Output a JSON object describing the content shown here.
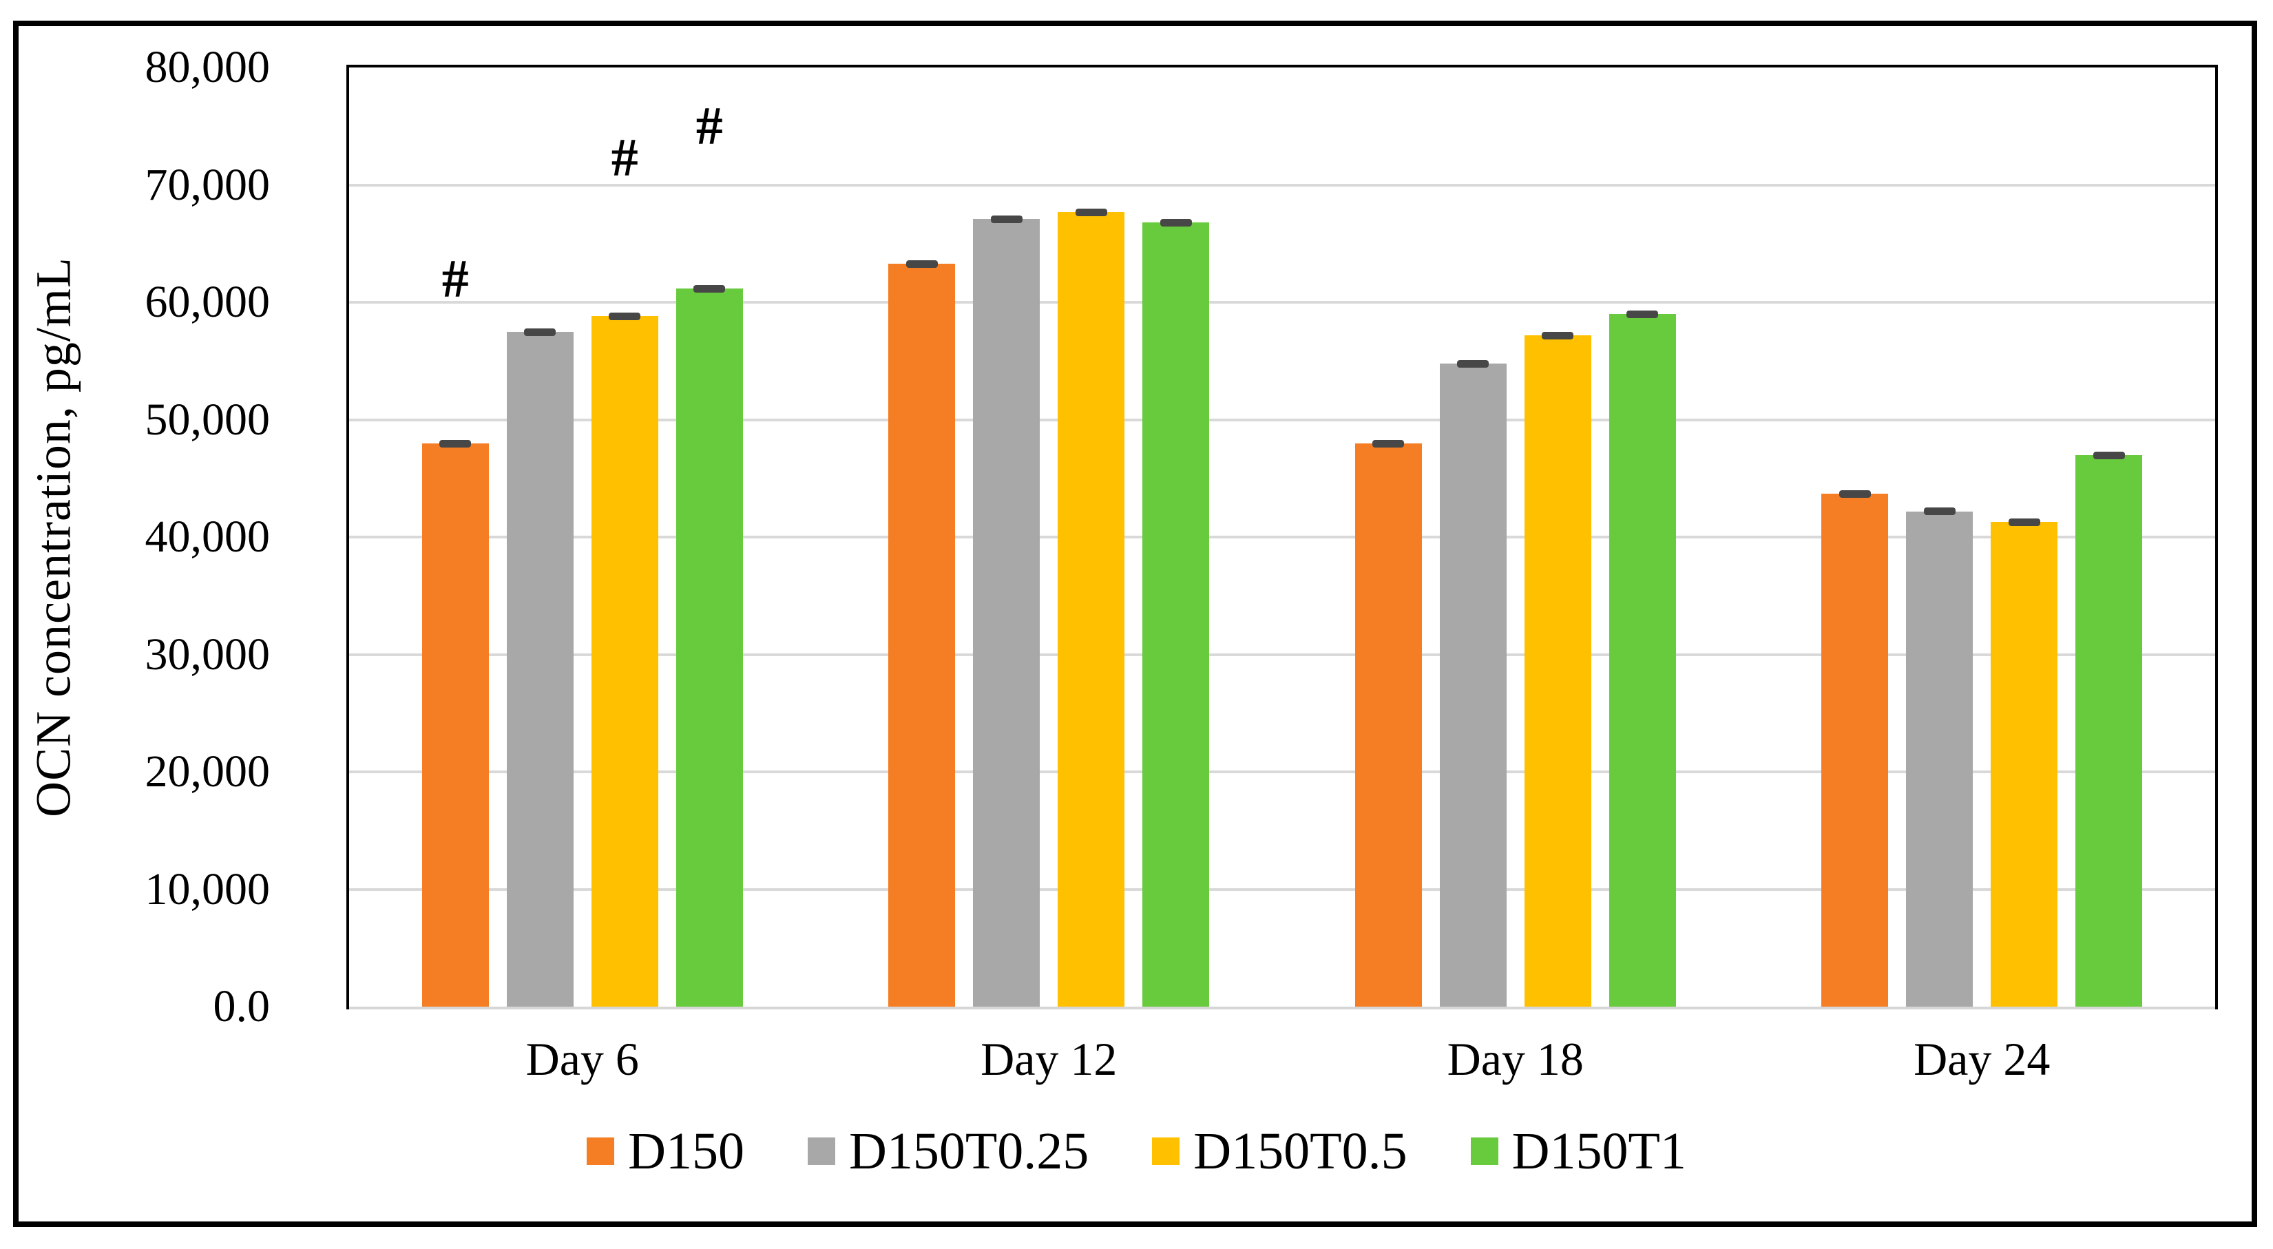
{
  "figure": {
    "background_color": "#ffffff",
    "border_color": "#000000"
  },
  "chart_data": {
    "type": "bar",
    "title": "",
    "xlabel": "",
    "ylabel": "OCN concentration, pg/mL",
    "ylim": [
      0,
      80000
    ],
    "ytick_interval": 10000,
    "ytick_labels": [
      "0.0",
      "10,000",
      "20,000",
      "30,000",
      "40,000",
      "50,000",
      "60,000",
      "70,000",
      "80,000"
    ],
    "grid": "horizontal",
    "gridline_color": "#d9d9d9",
    "axis_line_color": "#000000",
    "error_bar_color": "#474747",
    "legend_position": "bottom",
    "categories": [
      "Day 6",
      "Day 12",
      "Day 18",
      "Day 24"
    ],
    "series": [
      {
        "name": "D150",
        "color": "#f57e24",
        "values": [
          48000,
          63300,
          48000,
          43700
        ],
        "errors": [
          400,
          400,
          400,
          400
        ]
      },
      {
        "name": "D150T0.25",
        "color": "#a8a8a8",
        "values": [
          57500,
          67100,
          54800,
          42200
        ],
        "errors": [
          400,
          400,
          400,
          400
        ]
      },
      {
        "name": "D150T0.5",
        "color": "#ffc000",
        "values": [
          58800,
          67700,
          57200,
          41300
        ],
        "errors": [
          400,
          500,
          400,
          400
        ]
      },
      {
        "name": "D150T1",
        "color": "#68ca3d",
        "values": [
          61200,
          66800,
          59000,
          47000
        ],
        "errors": [
          400,
          400,
          400,
          400
        ]
      }
    ],
    "annotations": [
      {
        "text": "#",
        "category_index": 0,
        "series_index": 0,
        "value": 62000
      },
      {
        "text": "#",
        "category_index": 0,
        "series_index": 2,
        "value": 72300
      },
      {
        "text": "#",
        "category_index": 0,
        "series_index": 3,
        "value": 75000
      }
    ]
  }
}
